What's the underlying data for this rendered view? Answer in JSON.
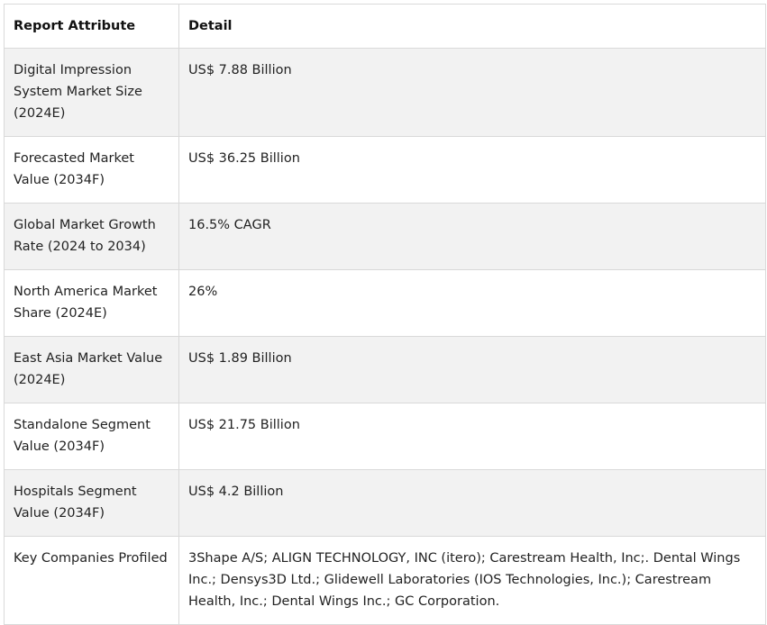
{
  "table": {
    "headers": [
      "Report Attribute",
      "Detail"
    ],
    "rows": [
      {
        "attribute": "Digital Impression System Market Size (2024E)",
        "detail": "US$ 7.88 Billion"
      },
      {
        "attribute": "Forecasted Market Value (2034F)",
        "detail": "US$ 36.25 Billion"
      },
      {
        "attribute": "Global Market Growth Rate (2024 to 2034)",
        "detail": "16.5% CAGR"
      },
      {
        "attribute": "North America Market Share (2024E)",
        "detail": "26%"
      },
      {
        "attribute": "East Asia Market Value (2024E)",
        "detail": "US$ 1.89 Billion"
      },
      {
        "attribute": "Standalone Segment Value (2034F)",
        "detail": "US$ 21.75 Billion"
      },
      {
        "attribute": "Hospitals Segment Value (2034F)",
        "detail": "US$ 4.2 Billion"
      },
      {
        "attribute": "Key Companies Profiled",
        "detail": "3Shape A/S; ALIGN TECHNOLOGY, INC (itero); Carestream Health, Inc;. Dental Wings Inc.; Densys3D Ltd.; Glidewell Laboratories (IOS Technologies, Inc.); Carestream Health, Inc.; Dental Wings Inc.; GC Corporation."
      }
    ]
  }
}
